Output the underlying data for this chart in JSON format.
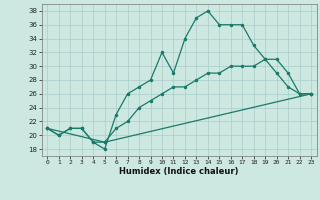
{
  "title": "",
  "xlabel": "Humidex (Indice chaleur)",
  "background_color": "#cce8e0",
  "grid_color": "#aacccc",
  "line_color": "#1a7a6a",
  "xlim": [
    -0.5,
    23.5
  ],
  "ylim": [
    17,
    39
  ],
  "yticks": [
    18,
    20,
    22,
    24,
    26,
    28,
    30,
    32,
    34,
    36,
    38
  ],
  "xticks": [
    0,
    1,
    2,
    3,
    4,
    5,
    6,
    7,
    8,
    9,
    10,
    11,
    12,
    13,
    14,
    15,
    16,
    17,
    18,
    19,
    20,
    21,
    22,
    23
  ],
  "line1_x": [
    0,
    1,
    2,
    3,
    4,
    5,
    6,
    7,
    8,
    9,
    10,
    11,
    12,
    13,
    14,
    15,
    16,
    17,
    18,
    19,
    20,
    21,
    22,
    23
  ],
  "line1_y": [
    21,
    20,
    21,
    21,
    19,
    18,
    23,
    26,
    27,
    28,
    32,
    29,
    34,
    37,
    38,
    36,
    36,
    36,
    33,
    31,
    29,
    27,
    26,
    26
  ],
  "line2_x": [
    0,
    1,
    2,
    3,
    4,
    5,
    6,
    7,
    8,
    9,
    10,
    11,
    12,
    13,
    14,
    15,
    16,
    17,
    18,
    19,
    20,
    21,
    22,
    23
  ],
  "line2_y": [
    21,
    20,
    21,
    21,
    19,
    19,
    21,
    22,
    24,
    25,
    26,
    27,
    27,
    28,
    29,
    29,
    30,
    30,
    30,
    31,
    31,
    29,
    26,
    26
  ],
  "line3_x": [
    0,
    5,
    23
  ],
  "line3_y": [
    21,
    19,
    26
  ]
}
